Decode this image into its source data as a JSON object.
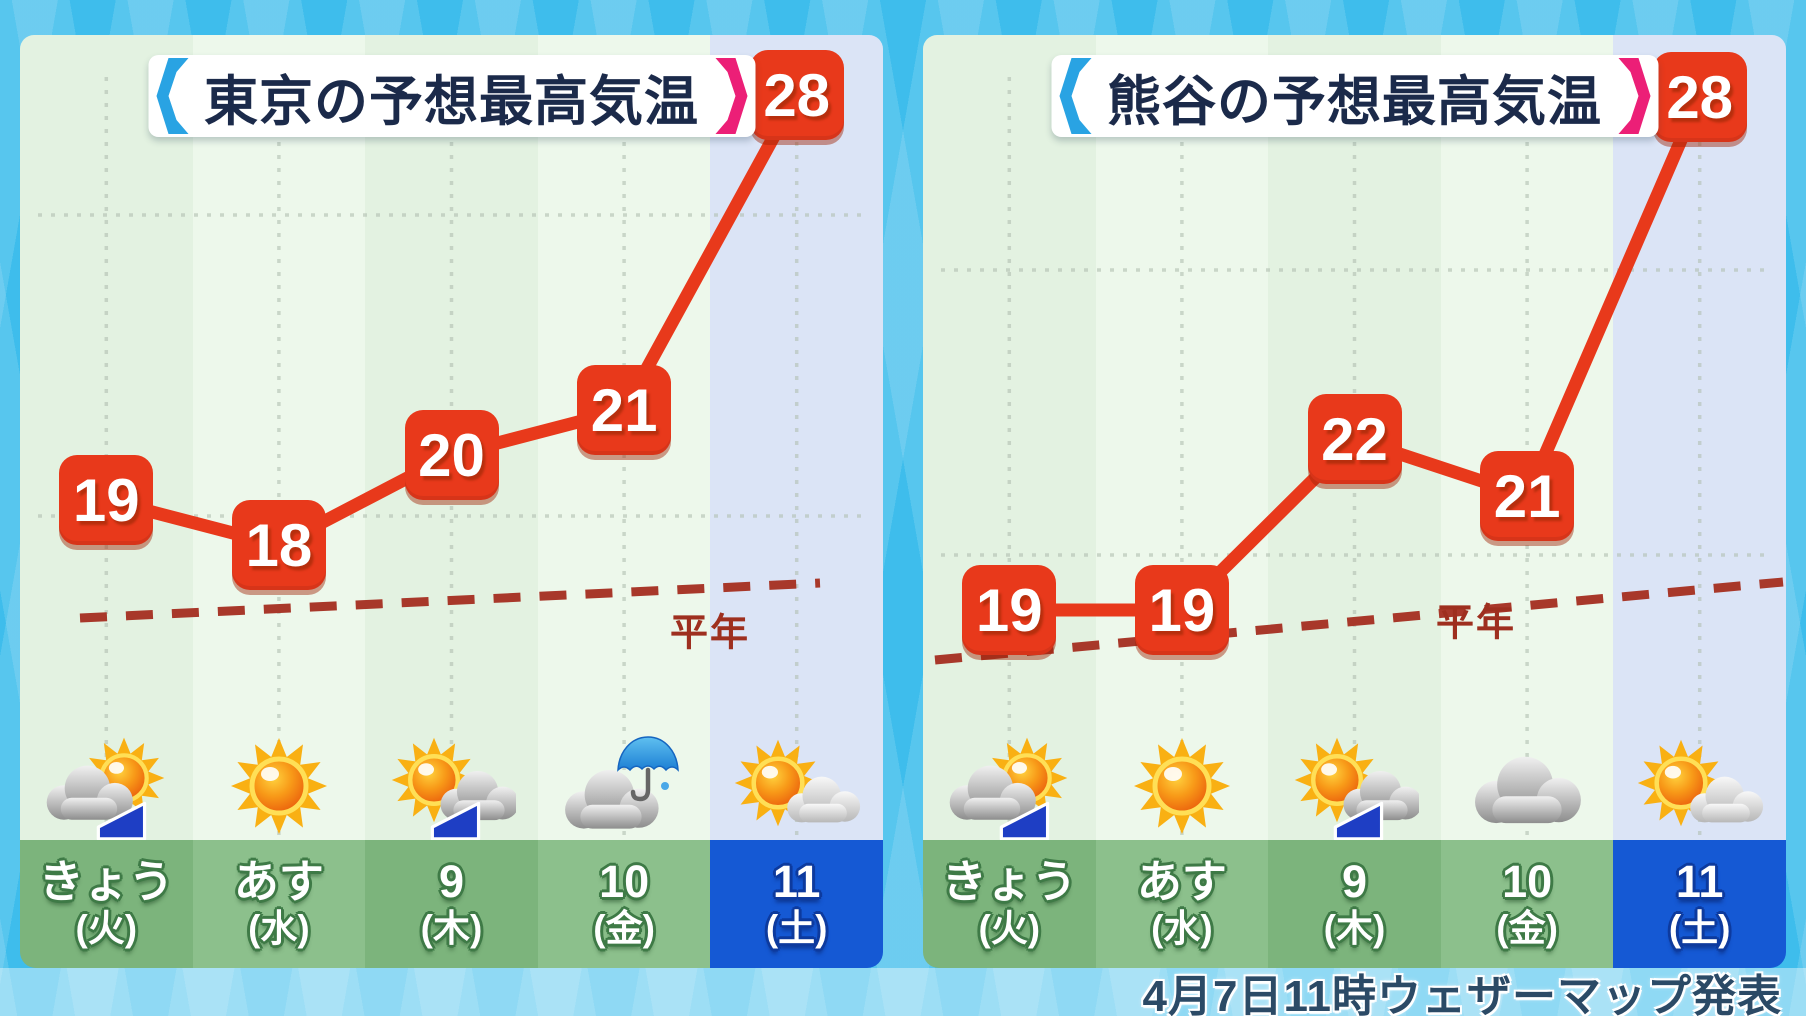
{
  "panels": [
    {
      "title": "東京の予想最高気温",
      "normal_label": "平年",
      "days": [
        {
          "label": "きょう",
          "sub": "(火)",
          "icon": "cloud-then-sun",
          "highlight": false
        },
        {
          "label": "あす",
          "sub": "(水)",
          "icon": "sunny",
          "highlight": false
        },
        {
          "label": "9",
          "sub": "(木)",
          "icon": "sun-then-cloud",
          "highlight": false
        },
        {
          "label": "10",
          "sub": "(金)",
          "icon": "rain-umbrella",
          "highlight": false
        },
        {
          "label": "11",
          "sub": "(土)",
          "icon": "sun-and-cloud",
          "highlight": true
        }
      ]
    },
    {
      "title": "熊谷の予想最高気温",
      "normal_label": "平年",
      "days": [
        {
          "label": "きょう",
          "sub": "(火)",
          "icon": "cloud-then-sun",
          "highlight": false
        },
        {
          "label": "あす",
          "sub": "(水)",
          "icon": "sunny",
          "highlight": false
        },
        {
          "label": "9",
          "sub": "(木)",
          "icon": "sun-then-cloud",
          "highlight": false
        },
        {
          "label": "10",
          "sub": "(金)",
          "icon": "cloudy",
          "highlight": false
        },
        {
          "label": "11",
          "sub": "(土)",
          "icon": "sun-and-cloud",
          "highlight": true
        }
      ]
    }
  ],
  "footer": {
    "attribution": "4月7日11時ウェザーマップ発表"
  },
  "colors": {
    "badge_red": "#e8391b",
    "line_red": "#e8391b",
    "normal_dash": "#a8382a",
    "band_green": "#7cb47c",
    "band_blue": "#1559d4",
    "bracket_left_blue": "#29a3e3",
    "bracket_right_pink": "#ec1f77",
    "background_cyan": "#3ebdec",
    "title_navy": "#1b2a4a"
  },
  "chart_data": [
    {
      "type": "line",
      "title": "東京の予想最高気温",
      "categories": [
        "きょう(火)",
        "あす(水)",
        "9(木)",
        "10(金)",
        "11(土)"
      ],
      "values": [
        19,
        18,
        20,
        21,
        28
      ],
      "unit": "℃",
      "normal_line_label": "平年",
      "normal_line_values_approx": [
        17.5,
        17.7,
        17.9,
        18.1,
        18.3
      ],
      "grid": "dotted",
      "highlight_category": "11(土)"
    },
    {
      "type": "line",
      "title": "熊谷の予想最高気温",
      "categories": [
        "きょう(火)",
        "あす(水)",
        "9(木)",
        "10(金)",
        "11(土)"
      ],
      "values": [
        19,
        19,
        22,
        21,
        28
      ],
      "unit": "℃",
      "normal_line_label": "平年",
      "normal_line_values_approx": [
        18.1,
        18.3,
        18.6,
        18.9,
        19.2
      ],
      "grid": "dotted",
      "highlight_category": "11(土)"
    }
  ]
}
